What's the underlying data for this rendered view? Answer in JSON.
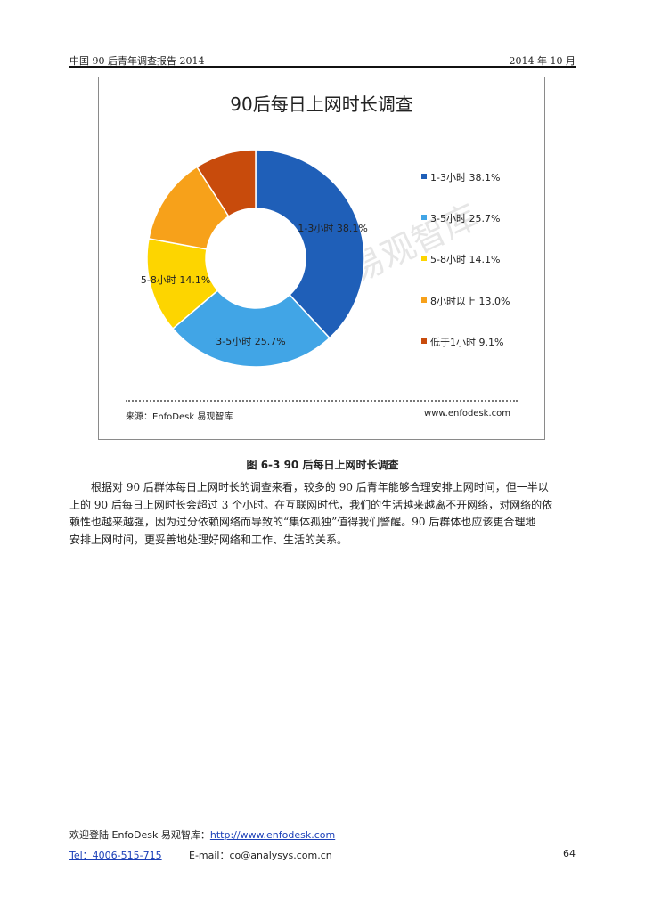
{
  "header": {
    "left": "中国 90 后青年调查报告 2014",
    "right": "2014 年 10 月"
  },
  "chart_data": {
    "type": "pie",
    "title": "90后每日上网时长调查",
    "categories": [
      "1-3小时",
      "3-5小时",
      "5-8小时",
      "8小时以上",
      "低于1小时"
    ],
    "values": [
      38.1,
      25.7,
      14.1,
      13.0,
      9.1
    ],
    "colors": [
      "#1f5fb8",
      "#41a5e6",
      "#fdd500",
      "#f7a11a",
      "#c84b0c"
    ],
    "slice_labels": [
      "1-3小时  38.1%",
      "3-5小时  25.7%",
      "5-8小时  14.1%",
      "",
      ""
    ],
    "legend": [
      "1-3小时  38.1%",
      "3-5小时  25.7%",
      "5-8小时  14.1%",
      "8小时以上  13.0%",
      "低于1小时  9.1%"
    ],
    "legend_position": "right",
    "donut": true,
    "source_left": "来源：EnfoDesk 易观智库",
    "source_right": "www.enfodesk.com",
    "watermark": "易观智库"
  },
  "caption": "图 6-3    90 后每日上网时长调查",
  "paragraph": {
    "lines": [
      "根据对 90 后群体每日上网时长的调查来看，较多的 90 后青年能够合理安排上网时间，但一半以",
      "上的 90 后每日上网时长会超过 3 个小时。在互联网时代，我们的生活越来越离不开网络，对网络的依",
      "赖性也越来越强，因为过分依赖网络而导致的“集体孤独”值得我们警醒。90 后群体也应该更合理地",
      "安排上网时间，更妥善地处理好网络和工作、生活的关系。"
    ]
  },
  "footer": {
    "welcome": "欢迎登陆 EnfoDesk 易观智库：",
    "url": "http://www.enfodesk.com",
    "tel": "Tel：4006-515-715",
    "email": "E-mail：co@analysys.com.cn",
    "page_number": "64"
  }
}
